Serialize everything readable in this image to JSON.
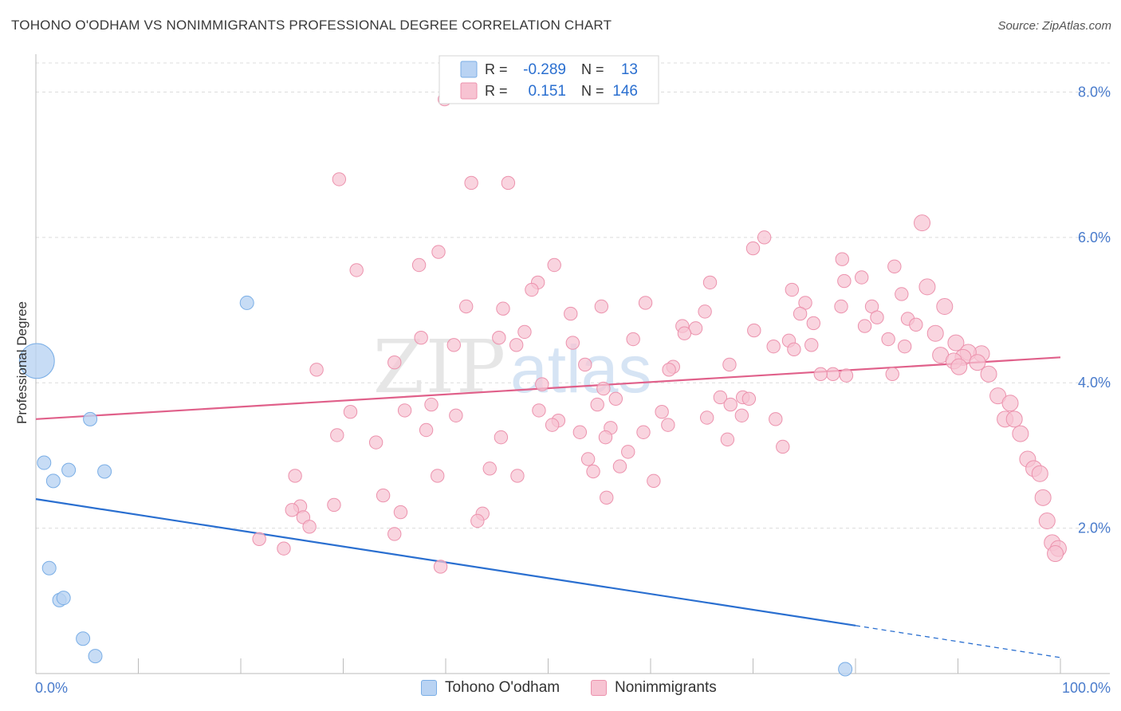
{
  "title": "TOHONO O'ODHAM VS NONIMMIGRANTS PROFESSIONAL DEGREE CORRELATION CHART",
  "source": "Source: ZipAtlas.com",
  "watermark": {
    "zip": "ZIP",
    "atlas": "atlas"
  },
  "colors": {
    "blue_fill": "#b9d3f3",
    "blue_stroke": "#7aaee6",
    "blue_line": "#2a6fd0",
    "pink_fill": "#f7c3d2",
    "pink_stroke": "#ec92ad",
    "pink_line": "#e0608a",
    "tick_text": "#4a7ccc",
    "grid": "#dcdcdc"
  },
  "legend_top": {
    "rows": [
      {
        "r_label": "R =",
        "r_value": "-0.289",
        "n_label": "N =",
        "n_value": "13",
        "color": "blue"
      },
      {
        "r_label": "R =",
        "r_value": "0.151",
        "n_label": "N =",
        "n_value": "146",
        "color": "pink"
      }
    ]
  },
  "legend_bottom": [
    {
      "label": "Tohono O'odham",
      "color": "blue"
    },
    {
      "label": "Nonimmigrants",
      "color": "pink"
    }
  ],
  "chart_data": {
    "type": "scatter",
    "title": "TOHONO O'ODHAM VS NONIMMIGRANTS PROFESSIONAL DEGREE CORRELATION CHART",
    "xlabel": "",
    "ylabel": "Professional Degree",
    "xlim": [
      0,
      100
    ],
    "ylim": [
      0,
      8.4
    ],
    "x_tick_labels": [
      "0.0%",
      "100.0%"
    ],
    "y_ticks": [
      2,
      4,
      6,
      8
    ],
    "y_tick_labels": [
      "2.0%",
      "4.0%",
      "6.0%",
      "8.0%"
    ],
    "grid": true,
    "series": [
      {
        "name": "Tohono O'odham",
        "color": "blue",
        "trend": {
          "x0": 0,
          "y0": 2.4,
          "x1": 80,
          "y1": 0.66,
          "dash_to_x": 100,
          "dash_to_y": 0.22
        },
        "points": [
          {
            "x": 0.1,
            "y": 4.3,
            "s": 3
          },
          {
            "x": 20.6,
            "y": 5.1
          },
          {
            "x": 5.3,
            "y": 3.5
          },
          {
            "x": 0.8,
            "y": 2.9
          },
          {
            "x": 1.7,
            "y": 2.65
          },
          {
            "x": 3.2,
            "y": 2.8
          },
          {
            "x": 6.7,
            "y": 2.78
          },
          {
            "x": 1.3,
            "y": 1.45
          },
          {
            "x": 2.3,
            "y": 1.01
          },
          {
            "x": 2.7,
            "y": 1.04
          },
          {
            "x": 4.6,
            "y": 0.48
          },
          {
            "x": 5.8,
            "y": 0.24
          },
          {
            "x": 79,
            "y": 0.06
          }
        ]
      },
      {
        "name": "Nonimmigrants",
        "color": "pink",
        "trend": {
          "x0": 0,
          "y0": 3.5,
          "x1": 100,
          "y1": 4.35
        },
        "points": [
          {
            "x": 39.9,
            "y": 7.9
          },
          {
            "x": 29.6,
            "y": 6.8
          },
          {
            "x": 42.5,
            "y": 6.75
          },
          {
            "x": 46.1,
            "y": 6.75
          },
          {
            "x": 86.5,
            "y": 6.2
          },
          {
            "x": 71.1,
            "y": 6.0
          },
          {
            "x": 70.0,
            "y": 5.85
          },
          {
            "x": 39.3,
            "y": 5.8
          },
          {
            "x": 78.7,
            "y": 5.7
          },
          {
            "x": 37.4,
            "y": 5.62
          },
          {
            "x": 50.6,
            "y": 5.62
          },
          {
            "x": 83.8,
            "y": 5.6
          },
          {
            "x": 31.3,
            "y": 5.55
          },
          {
            "x": 80.6,
            "y": 5.45
          },
          {
            "x": 78.9,
            "y": 5.4
          },
          {
            "x": 65.8,
            "y": 5.38
          },
          {
            "x": 49.0,
            "y": 5.38
          },
          {
            "x": 48.4,
            "y": 5.28
          },
          {
            "x": 87.0,
            "y": 5.32
          },
          {
            "x": 73.8,
            "y": 5.28
          },
          {
            "x": 84.5,
            "y": 5.22
          },
          {
            "x": 75.1,
            "y": 5.1
          },
          {
            "x": 59.5,
            "y": 5.1
          },
          {
            "x": 78.6,
            "y": 5.05
          },
          {
            "x": 81.6,
            "y": 5.05
          },
          {
            "x": 88.7,
            "y": 5.05
          },
          {
            "x": 42.0,
            "y": 5.05
          },
          {
            "x": 45.6,
            "y": 5.02
          },
          {
            "x": 55.2,
            "y": 5.05
          },
          {
            "x": 65.3,
            "y": 4.98
          },
          {
            "x": 52.2,
            "y": 4.95
          },
          {
            "x": 74.6,
            "y": 4.95
          },
          {
            "x": 82.1,
            "y": 4.9
          },
          {
            "x": 85.1,
            "y": 4.88
          },
          {
            "x": 75.9,
            "y": 4.82
          },
          {
            "x": 80.9,
            "y": 4.78
          },
          {
            "x": 85.9,
            "y": 4.8
          },
          {
            "x": 63.1,
            "y": 4.78
          },
          {
            "x": 64.4,
            "y": 4.75
          },
          {
            "x": 70.1,
            "y": 4.72
          },
          {
            "x": 87.8,
            "y": 4.68
          },
          {
            "x": 63.3,
            "y": 4.68
          },
          {
            "x": 47.7,
            "y": 4.7
          },
          {
            "x": 37.6,
            "y": 4.62
          },
          {
            "x": 45.2,
            "y": 4.62
          },
          {
            "x": 58.3,
            "y": 4.6
          },
          {
            "x": 83.2,
            "y": 4.6
          },
          {
            "x": 73.5,
            "y": 4.58
          },
          {
            "x": 89.8,
            "y": 4.55
          },
          {
            "x": 52.4,
            "y": 4.55
          },
          {
            "x": 40.8,
            "y": 4.52
          },
          {
            "x": 46.9,
            "y": 4.52
          },
          {
            "x": 75.7,
            "y": 4.52
          },
          {
            "x": 84.8,
            "y": 4.5
          },
          {
            "x": 72.0,
            "y": 4.5
          },
          {
            "x": 74.0,
            "y": 4.46
          },
          {
            "x": 92.3,
            "y": 4.4
          },
          {
            "x": 91.0,
            "y": 4.42
          },
          {
            "x": 88.3,
            "y": 4.38
          },
          {
            "x": 90.5,
            "y": 4.35
          },
          {
            "x": 89.6,
            "y": 4.3
          },
          {
            "x": 91.9,
            "y": 4.28
          },
          {
            "x": 35.0,
            "y": 4.28
          },
          {
            "x": 53.6,
            "y": 4.25
          },
          {
            "x": 67.7,
            "y": 4.25
          },
          {
            "x": 90.1,
            "y": 4.22
          },
          {
            "x": 62.2,
            "y": 4.22
          },
          {
            "x": 61.8,
            "y": 4.18
          },
          {
            "x": 27.4,
            "y": 4.18
          },
          {
            "x": 77.8,
            "y": 4.12
          },
          {
            "x": 79.1,
            "y": 4.1
          },
          {
            "x": 83.6,
            "y": 4.12
          },
          {
            "x": 93.0,
            "y": 4.12
          },
          {
            "x": 76.6,
            "y": 4.12
          },
          {
            "x": 49.4,
            "y": 3.98
          },
          {
            "x": 55.4,
            "y": 3.92
          },
          {
            "x": 93.9,
            "y": 3.82
          },
          {
            "x": 69.0,
            "y": 3.8
          },
          {
            "x": 66.8,
            "y": 3.8
          },
          {
            "x": 69.6,
            "y": 3.78
          },
          {
            "x": 56.6,
            "y": 3.78
          },
          {
            "x": 67.8,
            "y": 3.7
          },
          {
            "x": 54.8,
            "y": 3.7
          },
          {
            "x": 95.1,
            "y": 3.72
          },
          {
            "x": 38.6,
            "y": 3.7
          },
          {
            "x": 36.0,
            "y": 3.62
          },
          {
            "x": 49.1,
            "y": 3.62
          },
          {
            "x": 61.1,
            "y": 3.6
          },
          {
            "x": 30.7,
            "y": 3.6
          },
          {
            "x": 41.0,
            "y": 3.55
          },
          {
            "x": 65.5,
            "y": 3.52
          },
          {
            "x": 68.9,
            "y": 3.55
          },
          {
            "x": 72.2,
            "y": 3.5
          },
          {
            "x": 94.6,
            "y": 3.5
          },
          {
            "x": 95.5,
            "y": 3.5
          },
          {
            "x": 51.0,
            "y": 3.48
          },
          {
            "x": 50.4,
            "y": 3.42
          },
          {
            "x": 61.7,
            "y": 3.42
          },
          {
            "x": 56.1,
            "y": 3.38
          },
          {
            "x": 38.1,
            "y": 3.35
          },
          {
            "x": 53.1,
            "y": 3.32
          },
          {
            "x": 59.3,
            "y": 3.32
          },
          {
            "x": 29.4,
            "y": 3.28
          },
          {
            "x": 96.1,
            "y": 3.3
          },
          {
            "x": 45.4,
            "y": 3.25
          },
          {
            "x": 55.6,
            "y": 3.25
          },
          {
            "x": 67.5,
            "y": 3.22
          },
          {
            "x": 33.2,
            "y": 3.18
          },
          {
            "x": 72.9,
            "y": 3.12
          },
          {
            "x": 57.8,
            "y": 3.05
          },
          {
            "x": 96.8,
            "y": 2.95
          },
          {
            "x": 53.9,
            "y": 2.95
          },
          {
            "x": 57.0,
            "y": 2.85
          },
          {
            "x": 44.3,
            "y": 2.82
          },
          {
            "x": 97.4,
            "y": 2.82
          },
          {
            "x": 98.0,
            "y": 2.75
          },
          {
            "x": 54.4,
            "y": 2.78
          },
          {
            "x": 25.3,
            "y": 2.72
          },
          {
            "x": 39.2,
            "y": 2.72
          },
          {
            "x": 47.0,
            "y": 2.72
          },
          {
            "x": 60.3,
            "y": 2.65
          },
          {
            "x": 98.3,
            "y": 2.42
          },
          {
            "x": 33.9,
            "y": 2.45
          },
          {
            "x": 55.7,
            "y": 2.42
          },
          {
            "x": 29.1,
            "y": 2.32
          },
          {
            "x": 25.8,
            "y": 2.3
          },
          {
            "x": 25.0,
            "y": 2.25
          },
          {
            "x": 35.6,
            "y": 2.22
          },
          {
            "x": 43.6,
            "y": 2.2
          },
          {
            "x": 26.1,
            "y": 2.15
          },
          {
            "x": 98.7,
            "y": 2.1
          },
          {
            "x": 43.1,
            "y": 2.1
          },
          {
            "x": 26.7,
            "y": 2.02
          },
          {
            "x": 35.0,
            "y": 1.92
          },
          {
            "x": 21.8,
            "y": 1.85
          },
          {
            "x": 99.2,
            "y": 1.8
          },
          {
            "x": 24.2,
            "y": 1.72
          },
          {
            "x": 99.8,
            "y": 1.72
          },
          {
            "x": 99.5,
            "y": 1.65
          },
          {
            "x": 39.5,
            "y": 1.47
          }
        ]
      }
    ]
  }
}
